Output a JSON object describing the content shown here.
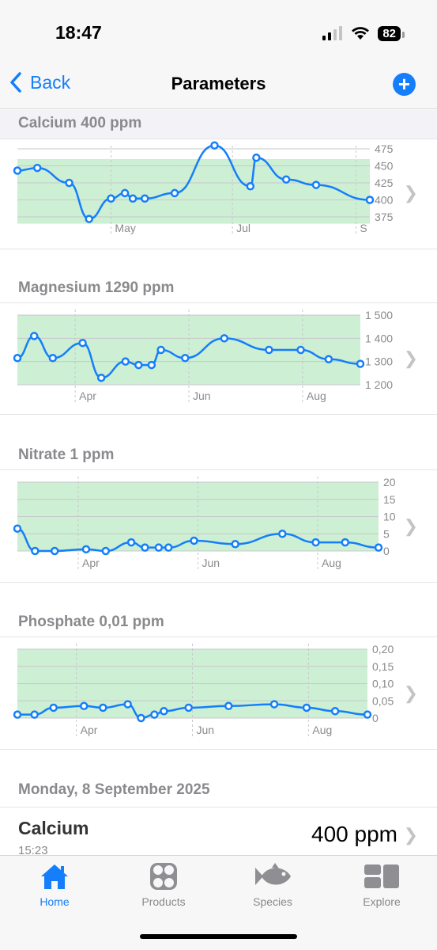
{
  "status_bar": {
    "time": "18:47",
    "battery": "82"
  },
  "nav": {
    "back_label": "Back",
    "title": "Parameters",
    "add_label": "+"
  },
  "colors": {
    "accent": "#147efb",
    "range_fill": "#cdefd3",
    "grid": "#c8c8cc"
  },
  "icons": {
    "back": "chevron-left-icon",
    "add": "plus-circle-icon",
    "row": "chevron-right-icon"
  },
  "sections": [
    {
      "header": "Calcium 400 ppm"
    },
    {
      "header": "Magnesium 1290 ppm"
    },
    {
      "header": "Nitrate 1 ppm"
    },
    {
      "header": "Phosphate 0,01 ppm"
    }
  ],
  "chart_data": [
    {
      "type": "line",
      "title": "Calcium 400 ppm",
      "x_ticks": [
        "May",
        "Jul",
        "S"
      ],
      "y_ticks": [
        "475",
        "450",
        "425",
        "400",
        "375"
      ],
      "ylim": [
        358,
        490
      ],
      "acceptable_range": [
        365,
        460
      ],
      "grid": true,
      "series": [
        {
          "x": [
            "Mar 15",
            "Mar 25",
            "Apr 10",
            "Apr 20",
            "May 1",
            "May 8",
            "May 12",
            "May 18",
            "Jun 2",
            "Jun 22",
            "Jul 10",
            "Jul 13",
            "Jul 28",
            "Aug 12",
            "Sep 8"
          ],
          "values": [
            443,
            447,
            425,
            372,
            402,
            410,
            402,
            402,
            410,
            480,
            420,
            462,
            430,
            422,
            400
          ]
        }
      ]
    },
    {
      "type": "line",
      "title": "Magnesium 1290 ppm",
      "x_ticks": [
        "Apr",
        "Jun",
        "Aug"
      ],
      "y_ticks": [
        "1 500",
        "1 400",
        "1 300",
        "1 200"
      ],
      "ylim": [
        1180,
        1520
      ],
      "acceptable_range": [
        1200,
        1500
      ],
      "grid": true,
      "series": [
        {
          "x": [
            "Mar 1",
            "Mar 10",
            "Mar 20",
            "Apr 5",
            "Apr 15",
            "Apr 28",
            "May 5",
            "May 12",
            "May 17",
            "May 30",
            "Jun 20",
            "Jul 14",
            "Jul 31",
            "Aug 15",
            "Sep 1"
          ],
          "values": [
            1315,
            1410,
            1315,
            1380,
            1230,
            1300,
            1285,
            1285,
            1350,
            1315,
            1400,
            1350,
            1350,
            1310,
            1290
          ]
        }
      ]
    },
    {
      "type": "line",
      "title": "Nitrate 1 ppm",
      "x_ticks": [
        "Apr",
        "Jun",
        "Aug"
      ],
      "y_ticks": [
        "20",
        "15",
        "10",
        "5",
        "0"
      ],
      "ylim": [
        -1,
        21
      ],
      "acceptable_range": [
        0,
        20
      ],
      "grid": true,
      "series": [
        {
          "x": [
            "Mar 1",
            "Mar 10",
            "Mar 20",
            "Apr 5",
            "Apr 15",
            "Apr 28",
            "May 5",
            "May 12",
            "May 17",
            "May 30",
            "Jun 20",
            "Jul 14",
            "Jul 31",
            "Aug 15",
            "Sep 1"
          ],
          "values": [
            6.5,
            0,
            0,
            0.5,
            0,
            2.5,
            1,
            1,
            1,
            3,
            2,
            5,
            2.5,
            2.5,
            1
          ]
        }
      ]
    },
    {
      "type": "line",
      "title": "Phosphate 0,01 ppm",
      "x_ticks": [
        "Apr",
        "Jun",
        "Aug"
      ],
      "y_ticks": [
        "0,20",
        "0,15",
        "0,10",
        "0,05",
        "0"
      ],
      "ylim": [
        -0.01,
        0.21
      ],
      "acceptable_range": [
        0,
        0.2
      ],
      "grid": true,
      "series": [
        {
          "x": [
            "Mar 1",
            "Mar 10",
            "Mar 20",
            "Apr 5",
            "Apr 15",
            "Apr 28",
            "May 5",
            "May 12",
            "May 17",
            "May 30",
            "Jun 20",
            "Jul 14",
            "Jul 31",
            "Aug 15",
            "Sep 1"
          ],
          "values": [
            0.01,
            0.01,
            0.03,
            0.035,
            0.03,
            0.04,
            0,
            0.01,
            0.02,
            0.03,
            0.035,
            0.04,
            0.03,
            0.02,
            0.01
          ]
        }
      ]
    }
  ],
  "entries_date": "Monday, 8 September 2025",
  "entries": [
    {
      "name": "Calcium",
      "time": "15:23",
      "value": "400 ppm"
    }
  ],
  "tabs": [
    {
      "label": "Home",
      "icon": "house-icon",
      "active": true
    },
    {
      "label": "Products",
      "icon": "fan-icon",
      "active": false
    },
    {
      "label": "Species",
      "icon": "fish-icon",
      "active": false
    },
    {
      "label": "Explore",
      "icon": "grid-icon",
      "active": false
    }
  ]
}
